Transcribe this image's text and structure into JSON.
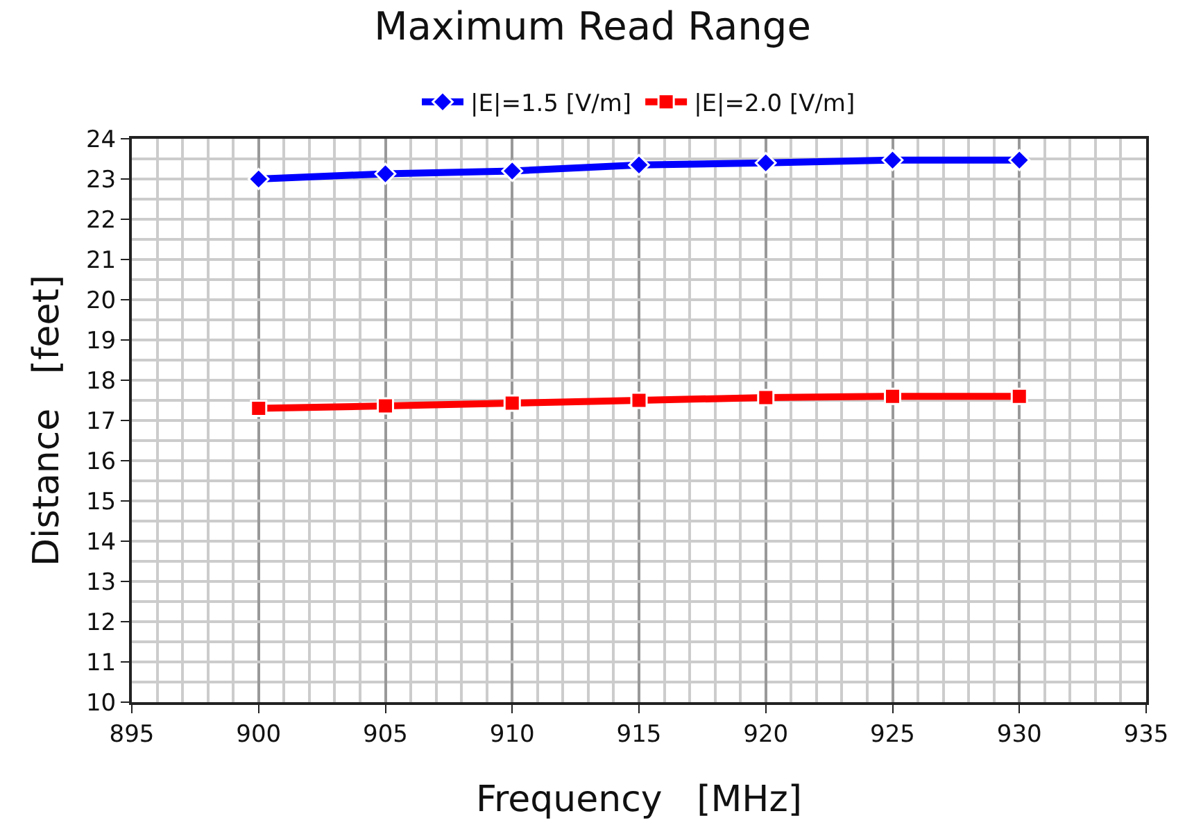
{
  "chart_data": {
    "type": "line",
    "title": "Maximum Read Range",
    "xlabel": "Frequency   [MHz]",
    "ylabel": "Distance   [feet]",
    "x": [
      900,
      905,
      910,
      915,
      920,
      925,
      930
    ],
    "series": [
      {
        "name": "|E|=1.5 [V/m]",
        "color": "#0000ff",
        "marker": "diamond",
        "values": [
          23.0,
          23.13,
          23.2,
          23.35,
          23.4,
          23.47,
          23.47
        ]
      },
      {
        "name": "|E|=2.0 [V/m]",
        "color": "#ff0000",
        "marker": "square",
        "values": [
          17.3,
          17.36,
          17.43,
          17.5,
          17.57,
          17.6,
          17.6
        ]
      }
    ],
    "xlim": [
      895,
      935
    ],
    "xticks": [
      895,
      900,
      905,
      910,
      915,
      920,
      925,
      930,
      935
    ],
    "ylim": [
      10,
      24
    ],
    "yticks": [
      10,
      11,
      12,
      13,
      14,
      15,
      16,
      17,
      18,
      19,
      20,
      21,
      22,
      23,
      24
    ],
    "grid": true,
    "legend": "top",
    "line_style": "solid"
  }
}
